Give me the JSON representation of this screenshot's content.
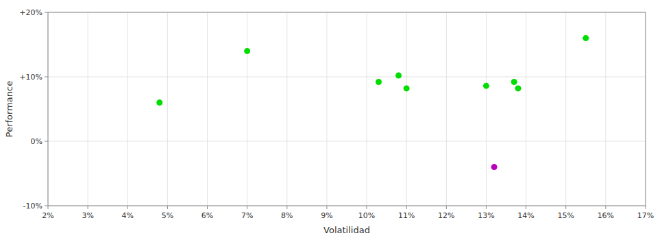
{
  "chart_data": {
    "type": "scatter",
    "xlabel": "Volatilidad",
    "ylabel": "Performance",
    "xlim": [
      0.02,
      0.17
    ],
    "ylim": [
      -0.1,
      0.2
    ],
    "xticks": [
      {
        "value": 0.02,
        "label": "2%"
      },
      {
        "value": 0.03,
        "label": "3%"
      },
      {
        "value": 0.04,
        "label": "4%"
      },
      {
        "value": 0.05,
        "label": "5%"
      },
      {
        "value": 0.06,
        "label": "6%"
      },
      {
        "value": 0.07,
        "label": "7%"
      },
      {
        "value": 0.08,
        "label": "8%"
      },
      {
        "value": 0.09,
        "label": "9%"
      },
      {
        "value": 0.1,
        "label": "10%"
      },
      {
        "value": 0.11,
        "label": "11%"
      },
      {
        "value": 0.12,
        "label": "12%"
      },
      {
        "value": 0.13,
        "label": "13%"
      },
      {
        "value": 0.14,
        "label": "14%"
      },
      {
        "value": 0.15,
        "label": "15%"
      },
      {
        "value": 0.16,
        "label": "16%"
      },
      {
        "value": 0.17,
        "label": "17%"
      }
    ],
    "yticks": [
      {
        "value": -0.1,
        "label": "-10%"
      },
      {
        "value": 0.0,
        "label": "0%"
      },
      {
        "value": 0.1,
        "label": "+10%"
      },
      {
        "value": 0.2,
        "label": "+20%"
      }
    ],
    "grid": true,
    "series": [
      {
        "color": "#00dd00",
        "x": [
          0.048,
          0.07,
          0.103,
          0.108,
          0.11,
          0.13,
          0.137,
          0.138,
          0.155
        ],
        "values": [
          0.06,
          0.14,
          0.092,
          0.102,
          0.082,
          0.086,
          0.092,
          0.082,
          0.16
        ]
      },
      {
        "color": "#bb00bb",
        "x": [
          0.132
        ],
        "values": [
          -0.04
        ]
      }
    ]
  }
}
